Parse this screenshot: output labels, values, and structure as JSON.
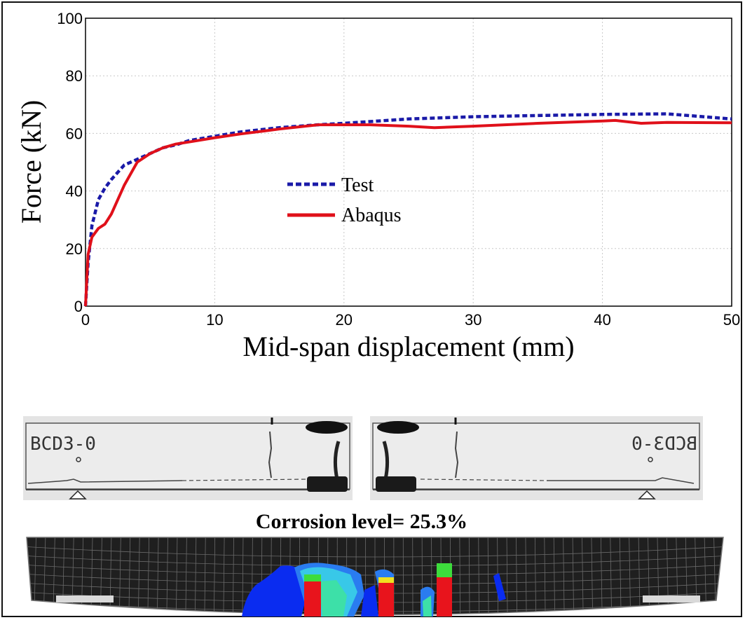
{
  "chart_data": {
    "type": "line",
    "xlabel": "Mid-span displacement (mm)",
    "ylabel": "Force (kN)",
    "xlim": [
      0,
      50
    ],
    "ylim": [
      0,
      100
    ],
    "xticks": [
      "0",
      "10",
      "20",
      "30",
      "40",
      "50"
    ],
    "yticks": [
      "0",
      "20",
      "40",
      "60",
      "80",
      "100"
    ],
    "grid": true,
    "legend_position": "center",
    "series": [
      {
        "name": "Test",
        "color": "#1a1aa8",
        "style": "dashed",
        "x": [
          0,
          0.2,
          0.5,
          1,
          1.5,
          2,
          3,
          4,
          5,
          6,
          7,
          8,
          10,
          12,
          15,
          18,
          20,
          25,
          30,
          35,
          40,
          45,
          50
        ],
        "y": [
          0,
          15,
          28,
          37,
          41,
          44,
          49,
          51,
          53,
          55,
          56,
          57.5,
          59,
          60.5,
          62,
          63,
          63.5,
          65,
          65.8,
          66.2,
          66.6,
          66.8,
          65
        ]
      },
      {
        "name": "Abaqus",
        "color": "#e0101a",
        "style": "solid",
        "x": [
          0,
          0.2,
          0.5,
          1,
          1.5,
          2,
          2.5,
          3,
          4,
          5,
          6,
          7,
          8,
          10,
          12,
          15,
          18,
          20,
          22,
          25,
          27,
          30,
          35,
          40,
          41,
          43,
          45,
          50
        ],
        "y": [
          0,
          18,
          24,
          27,
          28.5,
          32,
          37,
          42,
          50,
          53,
          55,
          56.3,
          57,
          58.5,
          59.8,
          61.5,
          63,
          63,
          63,
          62.5,
          62,
          62.5,
          63.5,
          64.3,
          64.5,
          63.5,
          63.8,
          63.7
        ]
      }
    ]
  },
  "specimen": {
    "left_label": "BCD3-0",
    "right_label": "BCD3-0",
    "caption": "Corrosion level= 25.3%"
  },
  "colors": {
    "grid": "#c8c8c8",
    "mesh_dark": "#1f1f1f",
    "mesh_line": "#6a6a6a",
    "plate": "#d9d9d9"
  }
}
